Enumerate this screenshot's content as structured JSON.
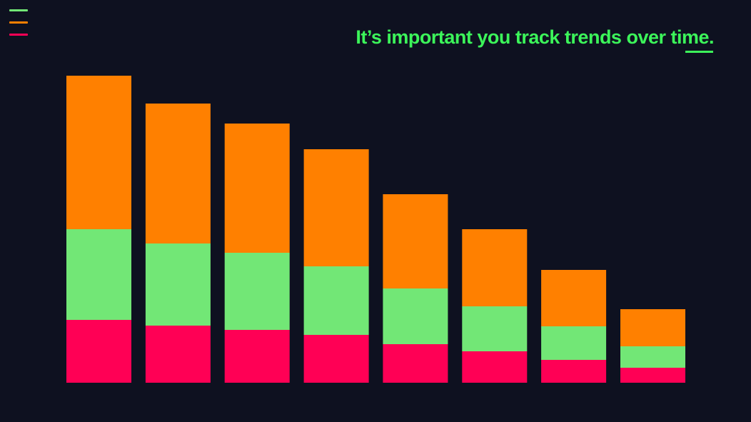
{
  "headline": "It’s important you track trends over time.",
  "colors": {
    "background": "#0e1120",
    "headline": "#3cf55a",
    "underline": "#3cf55a",
    "menu_lines": [
      "#72e776",
      "#ff8000",
      "#ff0055"
    ]
  },
  "icons": {
    "menu": "hamburger-menu-icon"
  },
  "chart_data": {
    "type": "bar",
    "stacked": true,
    "categories": [
      "",
      "",
      "",
      "",
      "",
      "",
      "",
      ""
    ],
    "series": [
      {
        "color": "#ff0055",
        "values": [
          88,
          80,
          74,
          67,
          54,
          44,
          32,
          21
        ]
      },
      {
        "color": "#72e776",
        "values": [
          127,
          115,
          108,
          96,
          78,
          63,
          47,
          30
        ]
      },
      {
        "color": "#ff8000",
        "values": [
          215,
          196,
          181,
          164,
          132,
          108,
          79,
          52
        ]
      }
    ],
    "ylim": [
      0,
      430
    ],
    "grid": false,
    "legend": "none",
    "title": "",
    "xlabel": "",
    "ylabel": ""
  }
}
